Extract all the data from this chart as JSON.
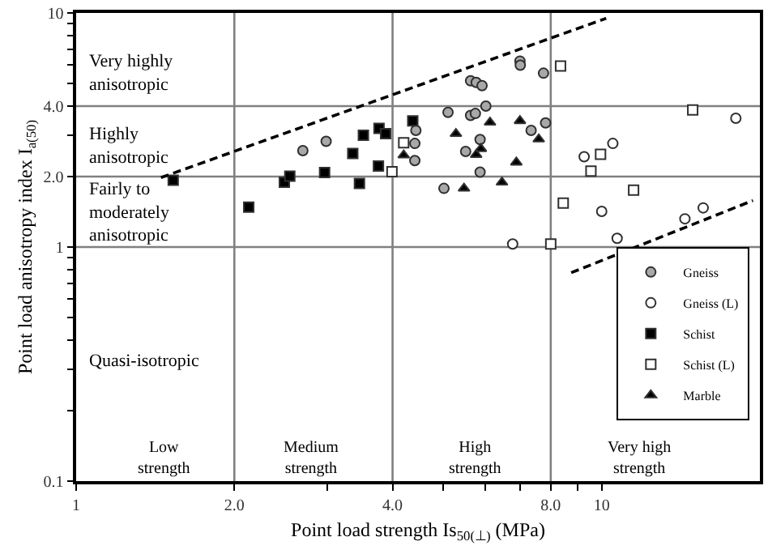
{
  "chart_data": {
    "type": "scatter",
    "xlabel": "Point load strength Is$_{50(⊥)}$ (MPa)",
    "ylabel": "Point load anisotropy index I$_{a(50)}$",
    "log": "xy",
    "grid": false,
    "legend": "bottom right",
    "xlim": [
      1,
      20
    ],
    "ylim": [
      0.1,
      10
    ],
    "xticks": [
      1,
      {
        "value": 2,
        "label": "2.0"
      },
      {
        "value": 3,
        "label": null
      },
      {
        "value": 4,
        "label": "4.0"
      },
      {
        "value": 5,
        "label": null
      },
      {
        "value": 6,
        "label": null
      },
      {
        "value": 7,
        "label": null
      },
      {
        "value": 8,
        "label": "8.0"
      },
      {
        "value": 9,
        "label": null
      },
      10
    ],
    "yticks": [
      0.1,
      {
        "value": 0.2,
        "label": null
      },
      {
        "value": 0.3,
        "label": null
      },
      {
        "value": 0.4,
        "label": null
      },
      {
        "value": 0.5,
        "label": null
      },
      {
        "value": 0.6,
        "label": null
      },
      {
        "value": 0.7,
        "label": null
      },
      {
        "value": 0.8,
        "label": null
      },
      {
        "value": 0.9,
        "label": null
      },
      1,
      {
        "value": 2,
        "label": "2.0"
      },
      {
        "value": 3,
        "label": null
      },
      {
        "value": 4,
        "label": "4.0"
      },
      {
        "value": 5,
        "label": null
      },
      {
        "value": 6,
        "label": null
      },
      {
        "value": 7,
        "label": null
      },
      {
        "value": 8,
        "label": null
      },
      {
        "value": 9,
        "label": null
      },
      10
    ],
    "ref_lines": [
      {
        "axis": "x",
        "value": 2,
        "color": "#808080"
      },
      {
        "axis": "x",
        "value": 4,
        "color": "#808080"
      },
      {
        "axis": "x",
        "value": 8,
        "color": "#808080"
      },
      {
        "axis": "y",
        "value": 1,
        "color": "#808080"
      },
      {
        "axis": "y",
        "value": 2,
        "color": "#808080"
      },
      {
        "axis": "y",
        "value": 4,
        "color": "#808080"
      }
    ],
    "series": [
      {
        "name": "Gneiss",
        "color": "#a8a8a8",
        "marker": "circle",
        "x": [
          2.7,
          2.99,
          4.43,
          4.41,
          4.41,
          5.1,
          5.01,
          5.51,
          5.63,
          5.77,
          5.92,
          5.63,
          5.75,
          5.87,
          5.87,
          6.02,
          6.99,
          7.0,
          7.34,
          7.75,
          7.82
        ],
        "values": [
          2.58,
          2.83,
          3.15,
          2.77,
          2.34,
          3.76,
          1.78,
          2.56,
          5.13,
          5.05,
          4.89,
          3.65,
          3.72,
          2.88,
          2.09,
          4.0,
          6.23,
          5.98,
          3.15,
          5.53,
          3.39
        ]
      },
      {
        "name": "Gneiss (L)",
        "color": "#ffffff",
        "marker": "circle",
        "x": [
          6.77,
          9.26,
          10.5,
          10.0,
          10.7,
          14.4,
          15.6,
          18.0
        ],
        "values": [
          1.03,
          2.43,
          2.77,
          1.42,
          1.09,
          1.32,
          1.47,
          3.55
        ]
      },
      {
        "name": "Schist",
        "color": "#000000",
        "marker": "square",
        "x": [
          1.53,
          2.13,
          2.49,
          2.55,
          2.97,
          3.36,
          3.46,
          3.52,
          3.77,
          3.88,
          3.76,
          4.37
        ],
        "values": [
          1.93,
          1.48,
          1.89,
          2.01,
          2.08,
          2.51,
          1.87,
          3.0,
          3.21,
          3.05,
          2.22,
          3.46
        ]
      },
      {
        "name": "Schist (L)",
        "color": "#ffffff",
        "marker": "square",
        "x": [
          4.2,
          3.99,
          8.35,
          8.45,
          8.0,
          9.54,
          9.95,
          11.5,
          14.9
        ],
        "values": [
          2.79,
          2.1,
          5.94,
          1.54,
          1.03,
          2.11,
          2.49,
          1.75,
          3.85
        ]
      },
      {
        "name": "Marble",
        "color": "#000000",
        "marker": "triangle",
        "x": [
          4.2,
          5.28,
          5.47,
          5.89,
          5.77,
          6.13,
          6.46,
          6.88,
          6.99,
          7.59
        ],
        "values": [
          2.47,
          3.05,
          1.78,
          2.63,
          2.48,
          3.41,
          1.89,
          2.3,
          3.46,
          2.89
        ]
      },
      {
        "type": "line",
        "line_style": "dashed",
        "color": "#000000",
        "x": [
          1.45,
          10.2
        ],
        "values": [
          1.98,
          9.49
        ]
      },
      {
        "type": "line",
        "line_style": "dashed",
        "color": "#000000",
        "x": [
          8.75,
          19.4
        ],
        "values": [
          0.777,
          1.58
        ]
      }
    ],
    "annotations": [
      "Very highly\nanisotropic",
      "Highly\nanisotropic",
      "Fairly to\nmoderately\nanisotropic",
      "Quasi-isotropic",
      "Low\nstrength",
      "Medium\nstrength",
      "High\nstrength",
      "Very high\nstrength"
    ]
  }
}
